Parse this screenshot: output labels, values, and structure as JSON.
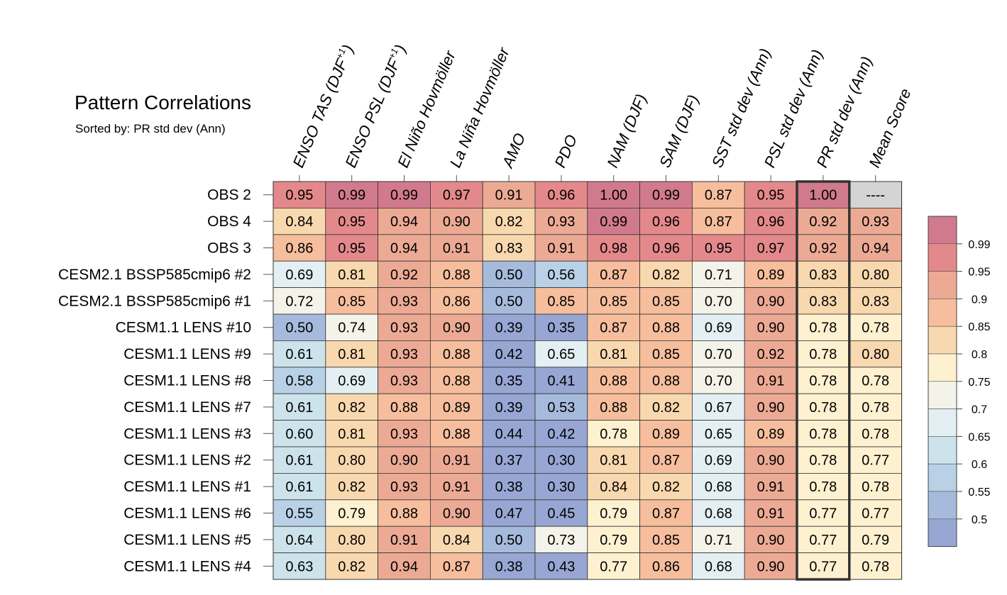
{
  "chart_data": {
    "type": "heatmap",
    "title": "Pattern Correlations",
    "subtitle": "Sorted by: PR std dev (Ann)",
    "columns": [
      {
        "label": "ENSO TAS (DJF",
        "sup": "+1",
        "close": ")"
      },
      {
        "label": "ENSO PSL (DJF",
        "sup": "+1",
        "close": ")"
      },
      {
        "label": "El Niño Hovmöller"
      },
      {
        "label": "La Niña Hovmöller"
      },
      {
        "label": "AMO"
      },
      {
        "label": "PDO"
      },
      {
        "label": "NAM (DJF)"
      },
      {
        "label": "SAM (DJF)"
      },
      {
        "label": "SST std dev (Ann)"
      },
      {
        "label": "PSL std dev (Ann)"
      },
      {
        "label": "PR std dev (Ann)"
      },
      {
        "label": "Mean Score"
      }
    ],
    "highlighted_column": "PR std dev (Ann)",
    "rows": [
      {
        "label": "OBS 2",
        "values": [
          "0.95",
          "0.99",
          "0.99",
          "0.97",
          "0.91",
          "0.96",
          "1.00",
          "0.99",
          "0.87",
          "0.95",
          "1.00",
          "----"
        ]
      },
      {
        "label": "OBS 4",
        "values": [
          "0.84",
          "0.95",
          "0.94",
          "0.90",
          "0.82",
          "0.93",
          "0.99",
          "0.96",
          "0.87",
          "0.96",
          "0.92",
          "0.93"
        ]
      },
      {
        "label": "OBS 3",
        "values": [
          "0.86",
          "0.95",
          "0.94",
          "0.91",
          "0.83",
          "0.91",
          "0.98",
          "0.96",
          "0.95",
          "0.97",
          "0.92",
          "0.94"
        ]
      },
      {
        "label": "CESM2.1 BSSP585cmip6 #2",
        "values": [
          "0.69",
          "0.81",
          "0.92",
          "0.88",
          "0.50",
          "0.56",
          "0.87",
          "0.82",
          "0.71",
          "0.89",
          "0.83",
          "0.80"
        ]
      },
      {
        "label": "CESM2.1 BSSP585cmip6 #1",
        "values": [
          "0.72",
          "0.85",
          "0.93",
          "0.86",
          "0.50",
          "0.85",
          "0.85",
          "0.85",
          "0.70",
          "0.90",
          "0.83",
          "0.83"
        ]
      },
      {
        "label": "CESM1.1 LENS #10",
        "values": [
          "0.50",
          "0.74",
          "0.93",
          "0.90",
          "0.39",
          "0.35",
          "0.87",
          "0.88",
          "0.69",
          "0.90",
          "0.78",
          "0.78"
        ]
      },
      {
        "label": "CESM1.1 LENS #9",
        "values": [
          "0.61",
          "0.81",
          "0.93",
          "0.88",
          "0.42",
          "0.65",
          "0.81",
          "0.85",
          "0.70",
          "0.92",
          "0.78",
          "0.80"
        ]
      },
      {
        "label": "CESM1.1 LENS #8",
        "values": [
          "0.58",
          "0.69",
          "0.93",
          "0.88",
          "0.35",
          "0.41",
          "0.88",
          "0.88",
          "0.70",
          "0.91",
          "0.78",
          "0.78"
        ]
      },
      {
        "label": "CESM1.1 LENS #7",
        "values": [
          "0.61",
          "0.82",
          "0.88",
          "0.89",
          "0.39",
          "0.53",
          "0.88",
          "0.82",
          "0.67",
          "0.90",
          "0.78",
          "0.78"
        ]
      },
      {
        "label": "CESM1.1 LENS #3",
        "values": [
          "0.60",
          "0.81",
          "0.93",
          "0.88",
          "0.44",
          "0.42",
          "0.78",
          "0.89",
          "0.65",
          "0.89",
          "0.78",
          "0.78"
        ]
      },
      {
        "label": "CESM1.1 LENS #2",
        "values": [
          "0.61",
          "0.80",
          "0.90",
          "0.91",
          "0.37",
          "0.30",
          "0.81",
          "0.87",
          "0.69",
          "0.90",
          "0.78",
          "0.77"
        ]
      },
      {
        "label": "CESM1.1 LENS #1",
        "values": [
          "0.61",
          "0.82",
          "0.93",
          "0.91",
          "0.38",
          "0.30",
          "0.84",
          "0.82",
          "0.68",
          "0.91",
          "0.78",
          "0.78"
        ]
      },
      {
        "label": "CESM1.1 LENS #6",
        "values": [
          "0.55",
          "0.79",
          "0.88",
          "0.90",
          "0.47",
          "0.45",
          "0.79",
          "0.87",
          "0.68",
          "0.91",
          "0.77",
          "0.77"
        ]
      },
      {
        "label": "CESM1.1 LENS #5",
        "values": [
          "0.64",
          "0.80",
          "0.91",
          "0.84",
          "0.50",
          "0.73",
          "0.79",
          "0.85",
          "0.71",
          "0.90",
          "0.77",
          "0.79"
        ]
      },
      {
        "label": "CESM1.1 LENS #4",
        "values": [
          "0.63",
          "0.82",
          "0.94",
          "0.87",
          "0.38",
          "0.43",
          "0.77",
          "0.86",
          "0.68",
          "0.90",
          "0.77",
          "0.78"
        ]
      }
    ],
    "colorbar": {
      "levels": [
        "0.99",
        "0.95",
        "0.9",
        "0.85",
        "0.8",
        "0.75",
        "0.7",
        "0.65",
        "0.6",
        "0.55",
        "0.5"
      ],
      "thresholds": [
        0.99,
        0.95,
        0.9,
        0.85,
        0.8,
        0.75,
        0.7,
        0.65,
        0.6,
        0.55,
        0.5
      ],
      "colors": [
        "#d27a8d",
        "#e4898b",
        "#ecaa95",
        "#f6be9d",
        "#f8d8ae",
        "#fdf1d0",
        "#f4f3ea",
        "#e3eff3",
        "#cde3ec",
        "#b8d1e6",
        "#a6bbdc",
        "#97a6d3"
      ]
    },
    "missing_color": "#d4d4d4"
  }
}
